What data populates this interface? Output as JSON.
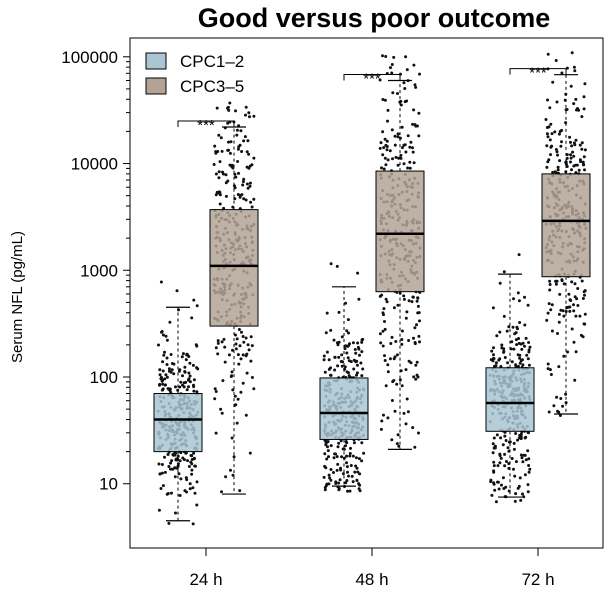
{
  "chart_data": {
    "type": "box",
    "title": "Good versus poor outcome",
    "xlabel": "",
    "ylabel": "Serum NFL (pg/mL)",
    "yscale": "log",
    "ylim": [
      2.5,
      150000
    ],
    "yticks": [
      10,
      100,
      1000,
      10000,
      100000
    ],
    "ytick_labels": [
      "10",
      "100",
      "1000",
      "10000",
      "100000"
    ],
    "categories": [
      "24 h",
      "48 h",
      "72 h"
    ],
    "legend_position": "top-left",
    "colors": {
      "CPC1–2": "#a9c6d3",
      "CPC3–5": "#b3a396"
    },
    "series": [
      {
        "name": "CPC1–2",
        "boxes": [
          {
            "min": 4.5,
            "q1": 20,
            "median": 40,
            "q3": 70,
            "max": 450
          },
          {
            "min": 9.5,
            "q1": 26,
            "median": 46,
            "q3": 98,
            "max": 700
          },
          {
            "min": 7.5,
            "q1": 31,
            "median": 57,
            "q3": 122,
            "max": 920
          }
        ]
      },
      {
        "name": "CPC3–5",
        "boxes": [
          {
            "min": 8,
            "q1": 300,
            "median": 1100,
            "q3": 3700,
            "max": 22000
          },
          {
            "min": 21,
            "q1": 630,
            "median": 2200,
            "q3": 8500,
            "max": 60000
          },
          {
            "min": 45,
            "q1": 870,
            "median": 2900,
            "q3": 8000,
            "max": 68000
          }
        ]
      }
    ],
    "significance": [
      "***",
      "***",
      "***"
    ]
  }
}
